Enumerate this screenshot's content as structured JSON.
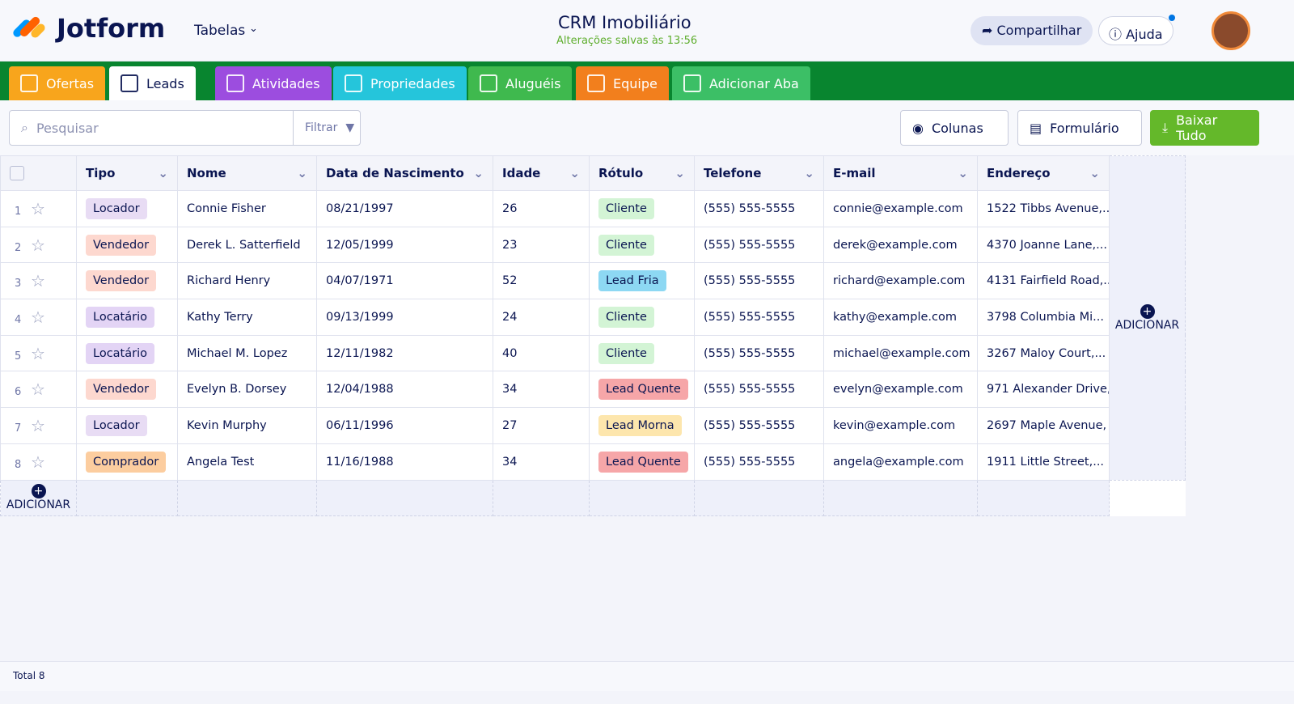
{
  "header": {
    "logo": "Jotform",
    "menu": "Tabelas",
    "title": "CRM Imobiliário",
    "status": "Alterações salvas às 13:56",
    "share": "Compartilhar",
    "help": "Ajuda"
  },
  "tabs": [
    {
      "label": "Ofertas",
      "color": "#f8a51c",
      "text_color": "#ffffff"
    },
    {
      "label": "Leads",
      "color": "#ffffff",
      "text_color": "#0a1551"
    },
    {
      "label": "Atividades",
      "color": "#9c4ddf",
      "text_color": "#ffffff"
    },
    {
      "label": "Propriedades",
      "color": "#25c5db",
      "text_color": "#ffffff"
    },
    {
      "label": "Aluguéis",
      "color": "#3fb94e",
      "text_color": "#ffffff"
    },
    {
      "label": "Equipe",
      "color": "#f27f1d",
      "text_color": "#ffffff"
    },
    {
      "label": "Adicionar Aba",
      "color": "#3cbf66",
      "text_color": "#ffffff"
    }
  ],
  "toolbar": {
    "search": "Pesquisar",
    "filter": "Filtrar",
    "columns": "Colunas",
    "form": "Formulário",
    "download": "Baixar Tudo"
  },
  "table": {
    "columns": [
      "Tipo",
      "Nome",
      "Data de Nascimento",
      "Idade",
      "Rótulo",
      "Telefone",
      "E-mail",
      "Endereço"
    ],
    "rows": [
      [
        "1",
        "Locador",
        "Connie Fisher",
        "08/21/1997",
        26,
        "Cliente",
        "(555) 555-5555",
        "connie@example.com",
        "1522 Tibbs Avenue,..."
      ],
      [
        "2",
        "Vendedor",
        "Derek L. Satterfield",
        "12/05/1999",
        23,
        "Cliente",
        "(555) 555-5555",
        "derek@example.com",
        "4370 Joanne Lane,..."
      ],
      [
        "3",
        "Vendedor",
        "Richard Henry",
        "04/07/1971",
        52,
        "Lead Fria",
        "(555) 555-5555",
        "richard@example.com",
        "4131 Fairfield Road,..."
      ],
      [
        "4",
        "Locatário",
        "Kathy Terry",
        "09/13/1999",
        24,
        "Cliente",
        "(555) 555-5555",
        "kathy@example.com",
        "3798 Columbia Mi..."
      ],
      [
        "5",
        "Locatário",
        "Michael M. Lopez",
        "12/11/1982",
        40,
        "Cliente",
        "(555) 555-5555",
        "michael@example.com",
        "3267 Maloy Court,..."
      ],
      [
        "6",
        "Vendedor",
        "Evelyn B. Dorsey",
        "12/04/1988",
        34,
        "Lead Quente",
        "(555) 555-5555",
        "evelyn@example.com",
        "971 Alexander Drive,"
      ],
      [
        "7",
        "Locador",
        "Kevin Murphy",
        "06/11/1996",
        27,
        "Lead Morna",
        "(555) 555-5555",
        "kevin@example.com",
        "2697 Maple Avenue,"
      ],
      [
        "8",
        "Comprador",
        "Angela Test",
        "11/16/1988",
        34,
        "Lead Quente",
        "(555) 555-5555",
        "angela@example.com",
        "1911 Little Street,..."
      ]
    ],
    "tag_colors": {
      "Locador": "#e8dcf4",
      "Vendedor": "#fdd8cf",
      "Locatário": "#e3d4f5",
      "Comprador": "#fccd9f",
      "Cliente": "#d3f4d5",
      "Lead Fria": "#8dd8f3",
      "Lead Quente": "#f6a6a8",
      "Lead Morna": "#fde6ad"
    },
    "add_column": "ADICIONAR",
    "add_row": "ADICIONAR"
  },
  "footer": {
    "total": "Total 8"
  }
}
